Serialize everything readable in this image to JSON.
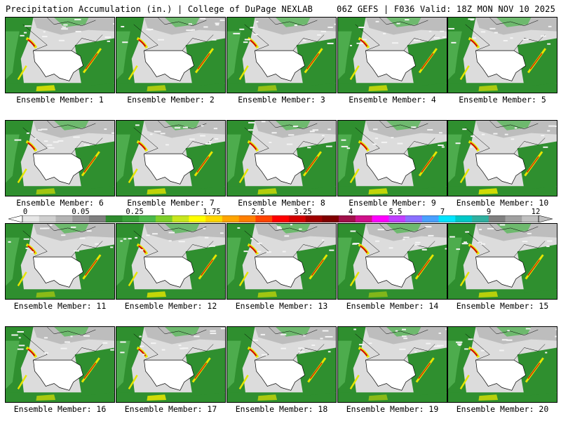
{
  "header": {
    "title": "Precipitation Accumulation (in.) | College of DuPage NEXLAB",
    "run_info": "06Z GEFS | F036 Valid: 18Z MON NOV 10 2025"
  },
  "panels": [
    {
      "label": "Ensemble Member: 1"
    },
    {
      "label": "Ensemble Member: 2"
    },
    {
      "label": "Ensemble Member: 3"
    },
    {
      "label": "Ensemble Member: 4"
    },
    {
      "label": "Ensemble Member: 5"
    },
    {
      "label": "Ensemble Member: 6"
    },
    {
      "label": "Ensemble Member: 7"
    },
    {
      "label": "Ensemble Member: 8"
    },
    {
      "label": "Ensemble Member: 9"
    },
    {
      "label": "Ensemble Member: 10"
    },
    {
      "label": "Ensemble Member: 11"
    },
    {
      "label": "Ensemble Member: 12"
    },
    {
      "label": "Ensemble Member: 13"
    },
    {
      "label": "Ensemble Member: 14"
    },
    {
      "label": "Ensemble Member: 15"
    },
    {
      "label": "Ensemble Member: 16"
    },
    {
      "label": "Ensemble Member: 17"
    },
    {
      "label": "Ensemble Member: 18"
    },
    {
      "label": "Ensemble Member: 19"
    },
    {
      "label": "Ensemble Member: 20"
    }
  ],
  "colorbar": {
    "tick_labels": [
      "0",
      "0.05",
      "0.25",
      "1",
      "1.75",
      "2.5",
      "3.25",
      "4",
      "5.5",
      "7",
      "9",
      "12"
    ],
    "colors": [
      "#e6e6e6",
      "#cfcfcf",
      "#b4b4b4",
      "#9a9a9a",
      "#7f7f7f",
      "#2e8b2e",
      "#3aa03a",
      "#4ab84a",
      "#7fcf2a",
      "#c8e61e",
      "#ffff00",
      "#ffd700",
      "#ffa500",
      "#ff7f00",
      "#ff4500",
      "#ff0000",
      "#d40000",
      "#a00000",
      "#800000",
      "#a0104a",
      "#d0108a",
      "#ff00ff",
      "#c040ff",
      "#8a70ff",
      "#4aa0ff",
      "#00e5ff",
      "#00c8c8",
      "#30b0a0",
      "#808080",
      "#a0a0a0",
      "#c0c0c0"
    ],
    "map_colors": {
      "land_low": "#dcdcdc",
      "green": "#2f8f2f",
      "green_light": "#5ab85a",
      "yellow": "#e6e600",
      "red": "#d40000",
      "white": "#ffffff"
    }
  }
}
